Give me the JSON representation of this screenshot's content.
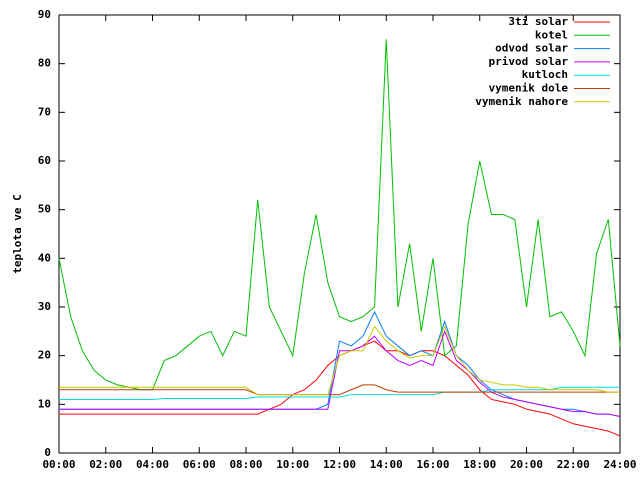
{
  "chart_data": {
    "type": "line",
    "ylabel": "teplota ve C",
    "x": [
      0,
      0.5,
      1,
      1.5,
      2,
      2.5,
      3,
      3.5,
      4,
      4.5,
      5,
      5.5,
      6,
      6.5,
      7,
      7.5,
      8,
      8.5,
      9,
      9.5,
      10,
      10.5,
      11,
      11.5,
      12,
      12.5,
      13,
      13.5,
      14,
      14.5,
      15,
      15.5,
      16,
      16.5,
      17,
      17.5,
      18,
      18.5,
      19,
      19.5,
      20,
      20.5,
      21,
      21.5,
      22,
      22.5,
      23,
      23.5,
      24
    ],
    "series": [
      {
        "name": "3ti solar",
        "color": "#ff0000",
        "values": [
          8,
          8,
          8,
          8,
          8,
          8,
          8,
          8,
          8,
          8,
          8,
          8,
          8,
          8,
          8,
          8,
          8,
          8,
          9,
          10,
          12,
          13,
          15,
          18,
          20,
          21,
          22,
          23,
          21,
          21,
          20,
          21,
          21,
          20,
          18,
          16,
          13,
          11,
          10.5,
          10,
          9,
          8.5,
          8,
          7,
          6,
          5.5,
          5,
          4.5,
          3.5
        ]
      },
      {
        "name": "kotel",
        "color": "#00c000",
        "values": [
          40,
          28,
          21,
          17,
          15,
          14,
          13.5,
          13,
          13,
          19,
          20,
          22,
          24,
          25,
          20,
          25,
          24,
          52,
          30,
          25,
          20,
          37,
          49,
          35,
          28,
          27,
          28,
          30,
          85,
          30,
          43,
          25,
          40,
          20,
          22,
          47,
          60,
          49,
          49,
          48,
          30,
          48,
          28,
          29,
          25,
          20,
          41,
          48,
          22
        ]
      },
      {
        "name": "odvod solar",
        "color": "#0080ff",
        "values": [
          9,
          9,
          9,
          9,
          9,
          9,
          9,
          9,
          9,
          9,
          9,
          9,
          9,
          9,
          9,
          9,
          9,
          9,
          9,
          9,
          9,
          9,
          9,
          10,
          23,
          22,
          24,
          29,
          24,
          22,
          20,
          21,
          20,
          27,
          20,
          18,
          15,
          13,
          12,
          11,
          10.5,
          10,
          9.5,
          9,
          9,
          8.5,
          8,
          8,
          7.5
        ]
      },
      {
        "name": "privod solar",
        "color": "#c000ff",
        "values": [
          9,
          9,
          9,
          9,
          9,
          9,
          9,
          9,
          9,
          9,
          9,
          9,
          9,
          9,
          9,
          9,
          9,
          9,
          9,
          9,
          9,
          9,
          9,
          9,
          21,
          21,
          22,
          24,
          21,
          19,
          18,
          19,
          18,
          25,
          19,
          17,
          14.5,
          12.5,
          11.5,
          11,
          10.5,
          10,
          9.5,
          9,
          8.5,
          8.5,
          8,
          8,
          7.5
        ]
      },
      {
        "name": "kutloch",
        "color": "#00dddd",
        "values": [
          11,
          11,
          11,
          11,
          11,
          11,
          11,
          11,
          11,
          11.2,
          11.2,
          11.2,
          11.2,
          11.2,
          11.2,
          11.2,
          11.2,
          11.5,
          11.5,
          11.5,
          11.5,
          11.5,
          11.5,
          11.5,
          11.5,
          12,
          12,
          12,
          12,
          12,
          12,
          12,
          12,
          12.5,
          12.5,
          12.5,
          12.5,
          13,
          13,
          13,
          13,
          13,
          13,
          13.5,
          13.5,
          13.5,
          13.5,
          13.5,
          13.5
        ]
      },
      {
        "name": "vymenik dole",
        "color": "#c04000",
        "values": [
          13,
          13,
          13,
          13,
          13,
          13,
          13,
          13,
          13,
          13,
          13,
          13,
          13,
          13,
          13,
          13,
          13,
          12,
          12,
          12,
          12,
          12,
          12,
          12,
          12,
          13,
          14,
          14,
          13,
          12.5,
          12.5,
          12.5,
          12.5,
          12.5,
          12.5,
          12.5,
          12.5,
          12.5,
          12.5,
          12.5,
          12.5,
          12.5,
          12.5,
          12.5,
          12.5,
          12.5,
          12.5,
          12.5,
          12.5
        ]
      },
      {
        "name": "vymenik nahore",
        "color": "#c8c800",
        "values": [
          13.5,
          13.5,
          13.5,
          13.5,
          13.5,
          13.5,
          13.5,
          13.5,
          13.5,
          13.5,
          13.5,
          13.5,
          13.5,
          13.5,
          13.5,
          13.5,
          13.5,
          12,
          12,
          12,
          12,
          12,
          12,
          12,
          20,
          21,
          21,
          26,
          23,
          21,
          19.5,
          20,
          20,
          26,
          20,
          17,
          15,
          14.5,
          14,
          14,
          13.5,
          13.5,
          13,
          13,
          13,
          13,
          13,
          12.5,
          12.5
        ]
      }
    ],
    "xlim": [
      0,
      24
    ],
    "xticks": [
      {
        "value": 0,
        "label": "00:00"
      },
      {
        "value": 2,
        "label": "02:00"
      },
      {
        "value": 4,
        "label": "04:00"
      },
      {
        "value": 6,
        "label": "06:00"
      },
      {
        "value": 8,
        "label": "08:00"
      },
      {
        "value": 10,
        "label": "10:00"
      },
      {
        "value": 12,
        "label": "12:00"
      },
      {
        "value": 14,
        "label": "14:00"
      },
      {
        "value": 16,
        "label": "16:00"
      },
      {
        "value": 18,
        "label": "18:00"
      },
      {
        "value": 20,
        "label": "20:00"
      },
      {
        "value": 22,
        "label": "22:00"
      },
      {
        "value": 24,
        "label": "24:00"
      }
    ],
    "ylim": [
      0,
      90
    ],
    "yticks": [
      0,
      10,
      20,
      30,
      40,
      50,
      60,
      70,
      80,
      90
    ],
    "grid": false,
    "legend": "top-right"
  }
}
